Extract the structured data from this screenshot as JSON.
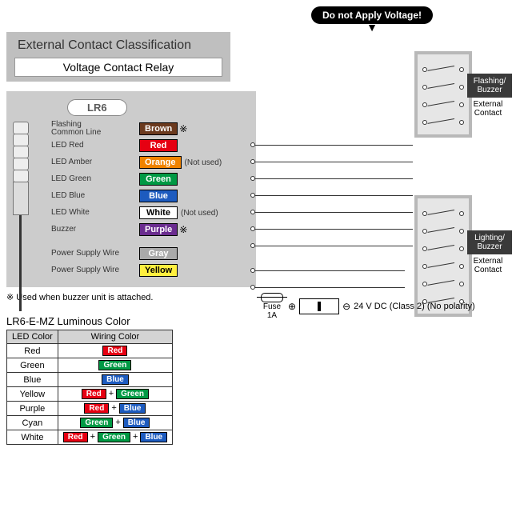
{
  "warning": "Do not Apply Voltage!",
  "header": {
    "title": "External Contact Classification",
    "relay": "Voltage Contact Relay"
  },
  "model": "LR6",
  "wires": [
    {
      "label": "Flashing\nCommon Line",
      "chip": "Brown",
      "bg": "#6b3a1e",
      "fg": "#ffffff",
      "note_mark": "※"
    },
    {
      "label": "LED Red",
      "chip": "Red",
      "bg": "#e60012",
      "fg": "#ffffff"
    },
    {
      "label": "LED Amber",
      "chip": "Orange",
      "bg": "#f08300",
      "fg": "#ffffff",
      "note": "(Not used)"
    },
    {
      "label": "LED Green",
      "chip": "Green",
      "bg": "#009944",
      "fg": "#ffffff"
    },
    {
      "label": "LED Blue",
      "chip": "Blue",
      "bg": "#1d5bbf",
      "fg": "#ffffff"
    },
    {
      "label": "LED White",
      "chip": "White",
      "bg": "#ffffff",
      "fg": "#000000",
      "note": "(Not used)"
    },
    {
      "label": "Buzzer",
      "chip": "Purple",
      "bg": "#6a2c8f",
      "fg": "#ffffff",
      "note_mark": "※"
    },
    {
      "label": "Power Supply Wire",
      "chip": "Gray",
      "bg": "#a9a9a9",
      "fg": "#ffffff",
      "spacer": true
    },
    {
      "label": "Power Supply Wire",
      "chip": "Yellow",
      "bg": "#ffef3f",
      "fg": "#000000"
    }
  ],
  "used_note": "※  Used when buzzer unit is attached.",
  "fuse": {
    "label": "Fuse",
    "rating": "1A"
  },
  "power": "24 V DC (Class 2) (No polarity)",
  "polarity": {
    "plus": "⊕",
    "minus": "⊖"
  },
  "contacts": [
    {
      "title": "Flashing/\nBuzzer",
      "sub": "External\nContact",
      "switches": 4
    },
    {
      "title": "Lighting/\nBuzzer",
      "sub": "External\nContact",
      "switches": 6
    }
  ],
  "lum_title": "LR6-E-MZ Luminous Color",
  "lum_headers": [
    "LED Color",
    "Wiring Color"
  ],
  "lum_rows": [
    {
      "name": "Red",
      "chips": [
        [
          "Red",
          "#e60012",
          "#fff"
        ]
      ]
    },
    {
      "name": "Green",
      "chips": [
        [
          "Green",
          "#009944",
          "#fff"
        ]
      ]
    },
    {
      "name": "Blue",
      "chips": [
        [
          "Blue",
          "#1d5bbf",
          "#fff"
        ]
      ]
    },
    {
      "name": "Yellow",
      "chips": [
        [
          "Red",
          "#e60012",
          "#fff"
        ],
        [
          "Green",
          "#009944",
          "#fff"
        ]
      ]
    },
    {
      "name": "Purple",
      "chips": [
        [
          "Red",
          "#e60012",
          "#fff"
        ],
        [
          "Blue",
          "#1d5bbf",
          "#fff"
        ]
      ]
    },
    {
      "name": "Cyan",
      "chips": [
        [
          "Green",
          "#009944",
          "#fff"
        ],
        [
          "Blue",
          "#1d5bbf",
          "#fff"
        ]
      ]
    },
    {
      "name": "White",
      "chips": [
        [
          "Red",
          "#e60012",
          "#fff"
        ],
        [
          "Green",
          "#009944",
          "#fff"
        ],
        [
          "Blue",
          "#1d5bbf",
          "#fff"
        ]
      ]
    }
  ],
  "colors": {
    "panel": "#cccccc",
    "header": "#bfbfbf",
    "box_border": "#b8b8b8",
    "box_bg": "#e6e6e6"
  }
}
